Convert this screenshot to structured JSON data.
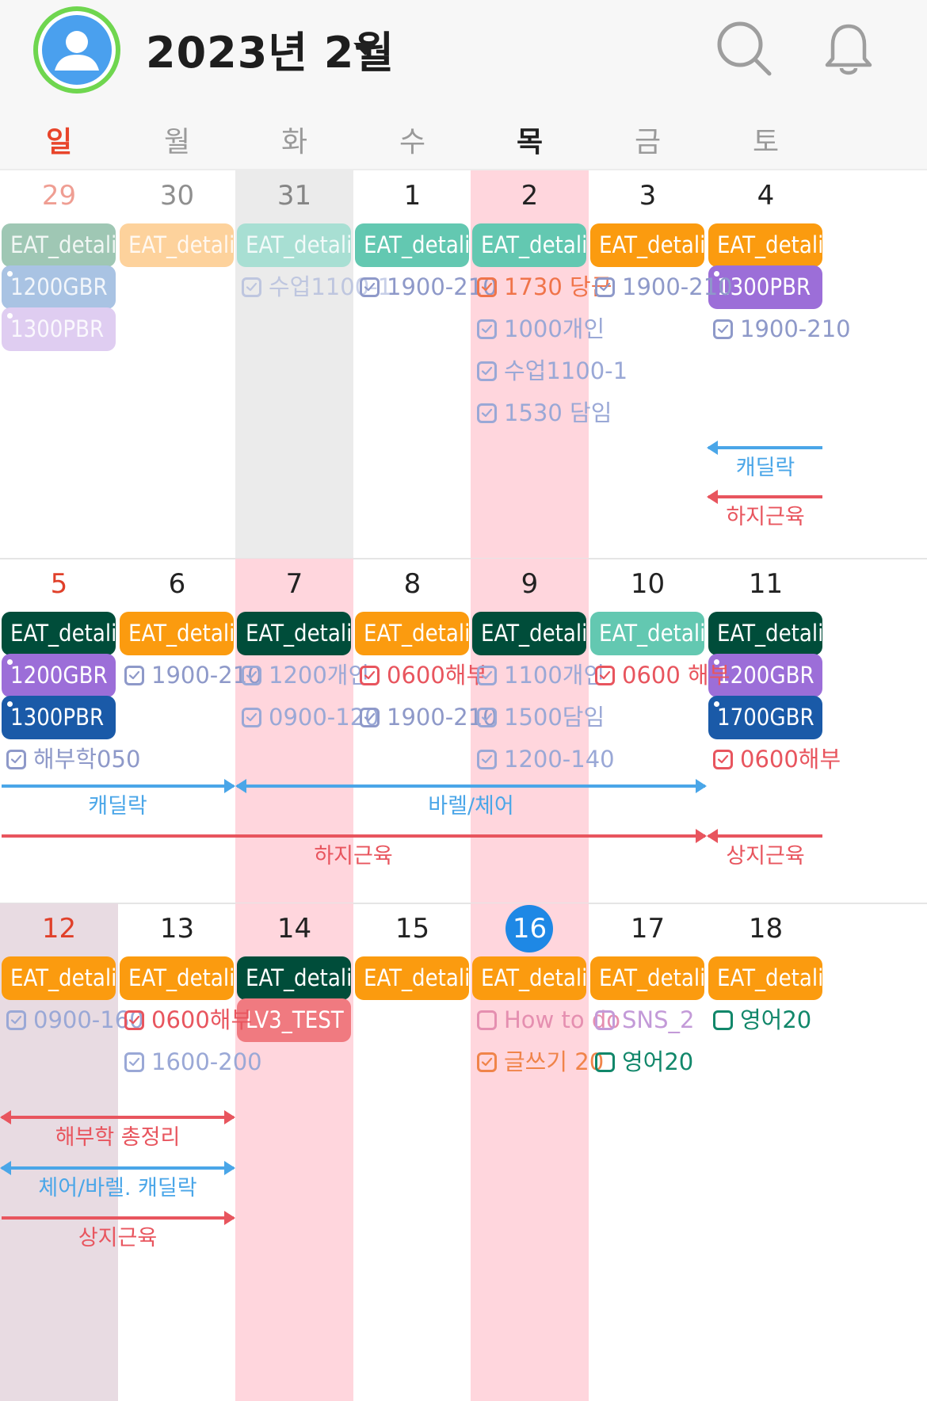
{
  "header": {
    "title": "2023년 2월",
    "avatar_icon": "user-avatar-icon",
    "search_icon": "search-icon",
    "bell_icon": "bell-icon"
  },
  "colors": {
    "sunday_red": "#e0402a",
    "today_blue": "#1e88e5",
    "highlight_pink": "#ffd6dd",
    "highlight_gray": "#ebebeb",
    "mauve": "#e8dbe2",
    "dark_green": "#004d3a",
    "orange": "#fb9b0f",
    "teal": "#63c8b1",
    "purple": "#9c6ed8",
    "navy": "#1a5aa8",
    "coral": "#f07a80",
    "link_blue": "#4aa6e8",
    "link_red": "#e8555e"
  },
  "day_headers": [
    "일",
    "월",
    "화",
    "수",
    "목",
    "금",
    "토"
  ],
  "weeks": [
    {
      "dates": [
        "29",
        "30",
        "31",
        "1",
        "2",
        "3",
        "4"
      ],
      "events": [
        {
          "day": 0,
          "row": 0,
          "label": "EAT_detali",
          "color": "#9fc7b4",
          "dim": true
        },
        {
          "day": 1,
          "row": 0,
          "label": "EAT_detali",
          "color": "#fdd29c",
          "dim": true
        },
        {
          "day": 2,
          "row": 0,
          "label": "EAT_detali",
          "color": "#a8dfd3",
          "dim": true
        },
        {
          "day": 3,
          "row": 0,
          "label": "EAT_detali",
          "color": "#63c8b1"
        },
        {
          "day": 4,
          "row": 0,
          "label": "EAT_detali",
          "color": "#63c8b1"
        },
        {
          "day": 5,
          "row": 0,
          "label": "EAT_detali",
          "color": "#fb9b0f"
        },
        {
          "day": 6,
          "row": 0,
          "label": "EAT_detali",
          "color": "#fb9b0f"
        },
        {
          "day": 0,
          "row": 1,
          "label": "1200GBR",
          "color": "#a9c3e3",
          "dot": true,
          "dim": true
        },
        {
          "day": 0,
          "row": 2,
          "label": "1300PBR",
          "color": "#dfcdf1",
          "dot": true,
          "dim": true
        },
        {
          "day": 6,
          "row": 1,
          "label": "1300PBR",
          "color": "#9c6ed8",
          "dot": true
        }
      ],
      "tasks": [
        {
          "day": 2,
          "row": 1,
          "label": "수업1100-1",
          "color": "#9aa8d6",
          "dim": true,
          "checked": true
        },
        {
          "day": 3,
          "row": 1,
          "label": "1900-210",
          "color": "#8e99c9",
          "checked": true
        },
        {
          "day": 4,
          "row": 1,
          "label": "1730 당근",
          "color": "#f0744a",
          "checked": true
        },
        {
          "day": 4,
          "row": 2,
          "label": "1000개인",
          "color": "#9aa8d6",
          "checked": true
        },
        {
          "day": 4,
          "row": 3,
          "label": "수업1100-1",
          "color": "#9aa8d6",
          "checked": true
        },
        {
          "day": 4,
          "row": 4,
          "label": "1530 담임",
          "color": "#9aa8d6",
          "checked": true
        },
        {
          "day": 5,
          "row": 1,
          "label": "1900-210",
          "color": "#8e99c9",
          "checked": true
        },
        {
          "day": 6,
          "row": 2,
          "label": "1900-210",
          "color": "#8e99c9",
          "checked": true
        }
      ],
      "spans": [
        {
          "label": "캐딜락",
          "start": 6,
          "end": 6,
          "lane": 0,
          "color": "#4aa6e8",
          "arrow_left": true,
          "arrow_right": false
        },
        {
          "label": "하지근육",
          "start": 6,
          "end": 6,
          "lane": 1,
          "color": "#e8555e",
          "arrow_left": true,
          "arrow_right": false
        }
      ]
    },
    {
      "dates": [
        "5",
        "6",
        "7",
        "8",
        "9",
        "10",
        "11"
      ],
      "events": [
        {
          "day": 0,
          "row": 0,
          "label": "EAT_detali",
          "color": "#004d3a"
        },
        {
          "day": 1,
          "row": 0,
          "label": "EAT_detali",
          "color": "#fb9b0f"
        },
        {
          "day": 2,
          "row": 0,
          "label": "EAT_detali",
          "color": "#004d3a"
        },
        {
          "day": 3,
          "row": 0,
          "label": "EAT_detali",
          "color": "#fb9b0f"
        },
        {
          "day": 4,
          "row": 0,
          "label": "EAT_detali",
          "color": "#004d3a"
        },
        {
          "day": 5,
          "row": 0,
          "label": "EAT_detali",
          "color": "#63c8b1"
        },
        {
          "day": 6,
          "row": 0,
          "label": "EAT_detali",
          "color": "#004d3a"
        },
        {
          "day": 0,
          "row": 1,
          "label": "1200GBR",
          "color": "#9c6ed8",
          "dot": true
        },
        {
          "day": 0,
          "row": 2,
          "label": "1300PBR",
          "color": "#1a5aa8",
          "dot": true
        },
        {
          "day": 6,
          "row": 1,
          "label": "1200GBR",
          "color": "#9c6ed8",
          "dot": true
        },
        {
          "day": 6,
          "row": 2,
          "label": "1700GBR",
          "color": "#1a5aa8",
          "dot": true
        }
      ],
      "tasks": [
        {
          "day": 0,
          "row": 3,
          "label": "해부학050",
          "color": "#8e99c9",
          "checked": true
        },
        {
          "day": 1,
          "row": 1,
          "label": "1900-210",
          "color": "#8e99c9",
          "checked": true
        },
        {
          "day": 2,
          "row": 1,
          "label": "1200개인",
          "color": "#9aa8d6",
          "checked": true
        },
        {
          "day": 2,
          "row": 2,
          "label": "0900-120",
          "color": "#9aa8d6",
          "checked": true
        },
        {
          "day": 3,
          "row": 1,
          "label": "0600해부",
          "color": "#e8555e",
          "checked": true
        },
        {
          "day": 3,
          "row": 2,
          "label": "1900-210",
          "color": "#8e99c9",
          "checked": true
        },
        {
          "day": 4,
          "row": 1,
          "label": "1100개인",
          "color": "#9aa8d6",
          "checked": true
        },
        {
          "day": 4,
          "row": 2,
          "label": "1500담임",
          "color": "#9aa8d6",
          "checked": true
        },
        {
          "day": 4,
          "row": 3,
          "label": "1200-140",
          "color": "#9aa8d6",
          "checked": true
        },
        {
          "day": 5,
          "row": 1,
          "label": "0600 해부",
          "color": "#e8555e",
          "checked": true
        },
        {
          "day": 6,
          "row": 3,
          "label": "0600해부",
          "color": "#e8555e",
          "checked": true
        }
      ],
      "spans": [
        {
          "label": "캐딜락",
          "start": 0,
          "end": 1,
          "lane": 0,
          "color": "#4aa6e8",
          "arrow_left": false,
          "arrow_right": true
        },
        {
          "label": "바렐/체어",
          "start": 2,
          "end": 5,
          "lane": 0,
          "color": "#4aa6e8",
          "arrow_left": true,
          "arrow_right": true
        },
        {
          "label": "하지근육",
          "start": 0,
          "end": 5,
          "lane": 1,
          "color": "#e8555e",
          "arrow_left": false,
          "arrow_right": true
        },
        {
          "label": "상지근육",
          "start": 6,
          "end": 6,
          "lane": 1,
          "color": "#e8555e",
          "arrow_left": true,
          "arrow_right": false
        }
      ]
    },
    {
      "dates": [
        "12",
        "13",
        "14",
        "15",
        "16",
        "17",
        "18"
      ],
      "events": [
        {
          "day": 0,
          "row": 0,
          "label": "EAT_detali",
          "color": "#fb9b0f"
        },
        {
          "day": 1,
          "row": 0,
          "label": "EAT_detali",
          "color": "#fb9b0f"
        },
        {
          "day": 2,
          "row": 0,
          "label": "EAT_detali",
          "color": "#004d3a"
        },
        {
          "day": 3,
          "row": 0,
          "label": "EAT_detali",
          "color": "#fb9b0f"
        },
        {
          "day": 4,
          "row": 0,
          "label": "EAT_detali",
          "color": "#fb9b0f"
        },
        {
          "day": 5,
          "row": 0,
          "label": "EAT_detali",
          "color": "#fb9b0f"
        },
        {
          "day": 6,
          "row": 0,
          "label": "EAT_detali",
          "color": "#fb9b0f"
        },
        {
          "day": 2,
          "row": 1,
          "label": "LV3_TEST",
          "color": "#f07a80"
        }
      ],
      "tasks": [
        {
          "day": 0,
          "row": 1,
          "label": "0900-160",
          "color": "#9aa8d6",
          "checked": true
        },
        {
          "day": 1,
          "row": 1,
          "label": "0600해부",
          "color": "#e8555e",
          "checked": true
        },
        {
          "day": 1,
          "row": 2,
          "label": "1600-200",
          "color": "#9aa8d6",
          "checked": true
        },
        {
          "day": 4,
          "row": 1,
          "label": "How to do",
          "color": "#e58fb0",
          "checked": false
        },
        {
          "day": 4,
          "row": 2,
          "label": "글쓰기 20",
          "color": "#f0844a",
          "checked": true
        },
        {
          "day": 5,
          "row": 1,
          "label": "SNS_2",
          "color": "#c39ad8",
          "checked": false
        },
        {
          "day": 5,
          "row": 2,
          "label": "영어20",
          "color": "#11876a",
          "checked": false
        },
        {
          "day": 6,
          "row": 1,
          "label": "영어20",
          "color": "#11876a",
          "checked": false
        }
      ],
      "spans": [
        {
          "label": "해부학 총정리",
          "start": 0,
          "end": 1,
          "lane": 0,
          "color": "#e8555e",
          "arrow_left": true,
          "arrow_right": true
        },
        {
          "label": "체어/바렐. 캐딜락",
          "start": 0,
          "end": 1,
          "lane": 1,
          "color": "#4aa6e8",
          "arrow_left": true,
          "arrow_right": true
        },
        {
          "label": "상지근육",
          "start": 0,
          "end": 1,
          "lane": 2,
          "color": "#e8555e",
          "arrow_left": false,
          "arrow_right": true
        }
      ]
    }
  ]
}
